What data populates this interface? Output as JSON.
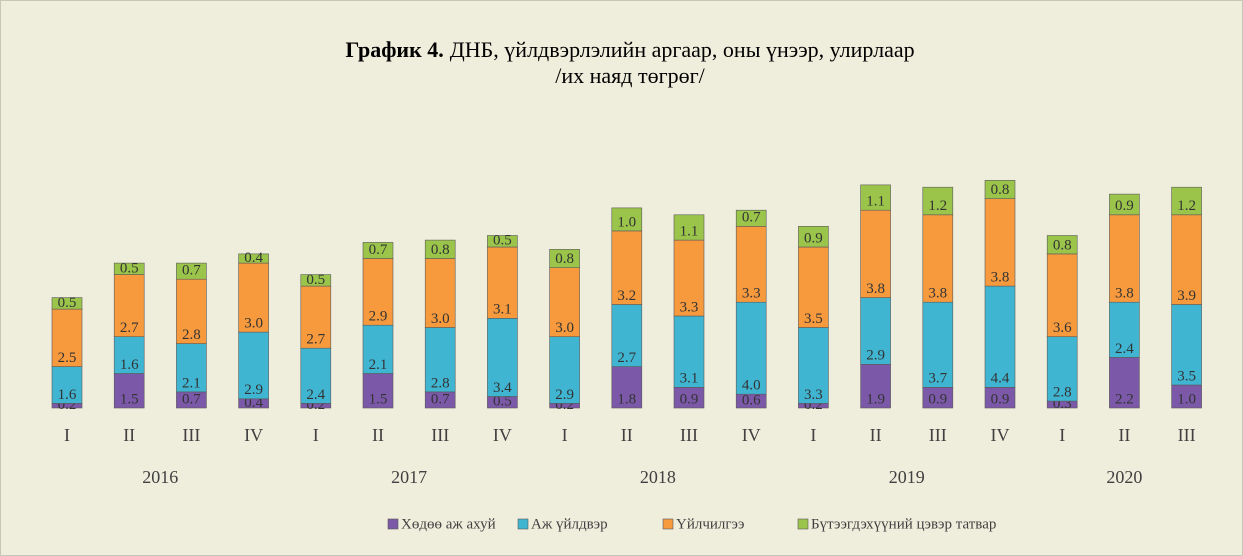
{
  "chart_data": {
    "type": "stacked_bar",
    "title_prefix": "График 4.",
    "title": "ДНБ, үйлдвэрлэлийн аргаар, оны үнээр, улирлаар",
    "subtitle": "/их наяд төгрөг/",
    "groups": [
      {
        "name": "2016",
        "categories": [
          "I",
          "II",
          "III",
          "IV"
        ]
      },
      {
        "name": "2017",
        "categories": [
          "I",
          "II",
          "III",
          "IV"
        ]
      },
      {
        "name": "2018",
        "categories": [
          "I",
          "II",
          "III",
          "IV"
        ]
      },
      {
        "name": "2019",
        "categories": [
          "I",
          "II",
          "III",
          "IV"
        ]
      },
      {
        "name": "2020",
        "categories": [
          "I",
          "II",
          "III"
        ]
      }
    ],
    "series": [
      {
        "name": "Хөдөө аж ахуй",
        "color": "#7b59a8",
        "values": [
          0.2,
          1.5,
          0.7,
          0.4,
          0.2,
          1.5,
          0.7,
          0.5,
          0.2,
          1.8,
          0.9,
          0.6,
          0.2,
          1.9,
          0.9,
          0.9,
          0.3,
          2.2,
          1.0
        ],
        "value_labels": [
          "0.2",
          "1.5",
          "0.7",
          "0.4",
          "0.2",
          "1.5",
          "0.7",
          "0.5",
          "0.2",
          "1.8",
          "0.9",
          "0.6",
          "0.2",
          "1.9",
          "0.9",
          "0.9",
          "0.3",
          "2.2",
          "1.0"
        ]
      },
      {
        "name": "Аж үйлдвэр",
        "color": "#3fb5d2",
        "values": [
          1.6,
          1.6,
          2.1,
          2.9,
          2.4,
          2.1,
          2.8,
          3.4,
          2.9,
          2.7,
          3.1,
          4.0,
          3.3,
          2.9,
          3.7,
          4.4,
          2.8,
          2.4,
          3.5
        ],
        "value_labels": [
          "1.6",
          "1.6",
          "2.1",
          "2.9",
          "2.4",
          "2.1",
          "2.8",
          "3.4",
          "2.9",
          "2.7",
          "3.1",
          "4.0",
          "3.3",
          "2.9",
          "3.7",
          "4.4",
          "2.8",
          "2.4",
          "3.5"
        ]
      },
      {
        "name": "Үйлчилгээ",
        "color": "#f79a3d",
        "values": [
          2.5,
          2.7,
          2.8,
          3.0,
          2.7,
          2.9,
          3.0,
          3.1,
          3.0,
          3.2,
          3.3,
          3.3,
          3.5,
          3.8,
          3.8,
          3.8,
          3.6,
          3.8,
          3.9
        ],
        "value_labels": [
          "2.5",
          "2.7",
          "2.8",
          "3.0",
          "2.7",
          "2.9",
          "3.0",
          "3.1",
          "3.0",
          "3.2",
          "3.3",
          "3.3",
          "3.5",
          "3.8",
          "3.8",
          "3.8",
          "3.6",
          "3.8",
          "3.9"
        ]
      },
      {
        "name": "Бүтээгдэхүүний цэвэр татвар",
        "color": "#9bc44b",
        "values": [
          0.5,
          0.5,
          0.7,
          0.4,
          0.5,
          0.7,
          0.8,
          0.5,
          0.8,
          1.0,
          1.1,
          0.7,
          0.9,
          1.1,
          1.2,
          0.8,
          0.8,
          0.9,
          1.2
        ],
        "value_labels": [
          "0.5",
          "0.5",
          "0.7",
          "0.4",
          "0.5",
          "0.7",
          "0.8",
          "0.5",
          "0.8",
          "1.0",
          "1.1",
          "0.7",
          "0.9",
          "1.1",
          "1.2",
          "0.8",
          "0.8",
          "0.9",
          "1.2"
        ]
      }
    ]
  }
}
